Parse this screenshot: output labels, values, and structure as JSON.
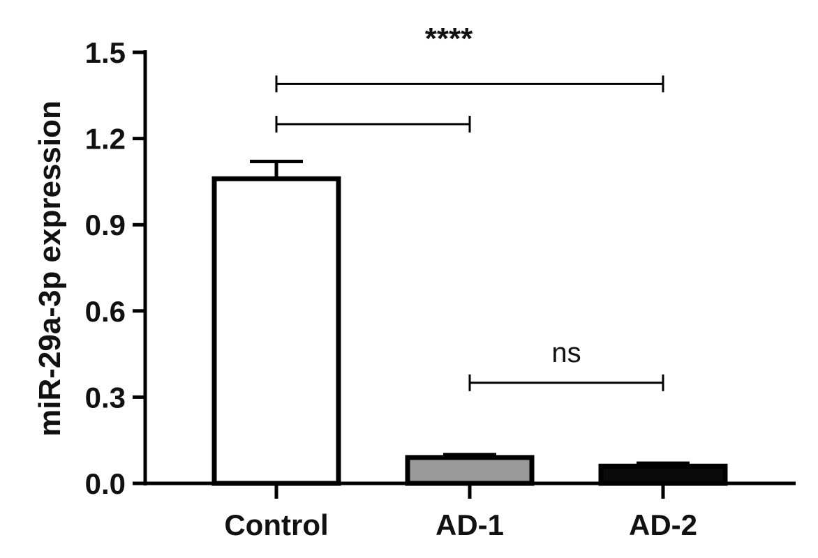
{
  "chart_data": {
    "type": "bar",
    "title": "",
    "xlabel": "",
    "ylabel": "miR-29a-3p expression",
    "ylim": [
      0,
      1.5
    ],
    "yticks": [
      "0.0",
      "0.3",
      "0.6",
      "0.9",
      "1.2",
      "1.5"
    ],
    "categories": [
      "Control",
      "AD-1",
      "AD-2"
    ],
    "values": [
      1.06,
      0.09,
      0.06
    ],
    "error_upper": [
      1.12,
      0.1,
      0.07
    ],
    "bar_fill_colors": [
      "#ffffff",
      "#9a9a9a",
      "#0a0a0a"
    ],
    "bar_edge_color": "#000000",
    "grid": false,
    "legend": "none",
    "significance": [
      {
        "from": "Control",
        "to": "AD-2",
        "level": 1.39,
        "label": "****"
      },
      {
        "from": "Control",
        "to": "AD-1",
        "level": 1.25,
        "label": ""
      },
      {
        "from": "AD-1",
        "to": "AD-2",
        "level": 0.35,
        "label": "ns"
      }
    ]
  }
}
